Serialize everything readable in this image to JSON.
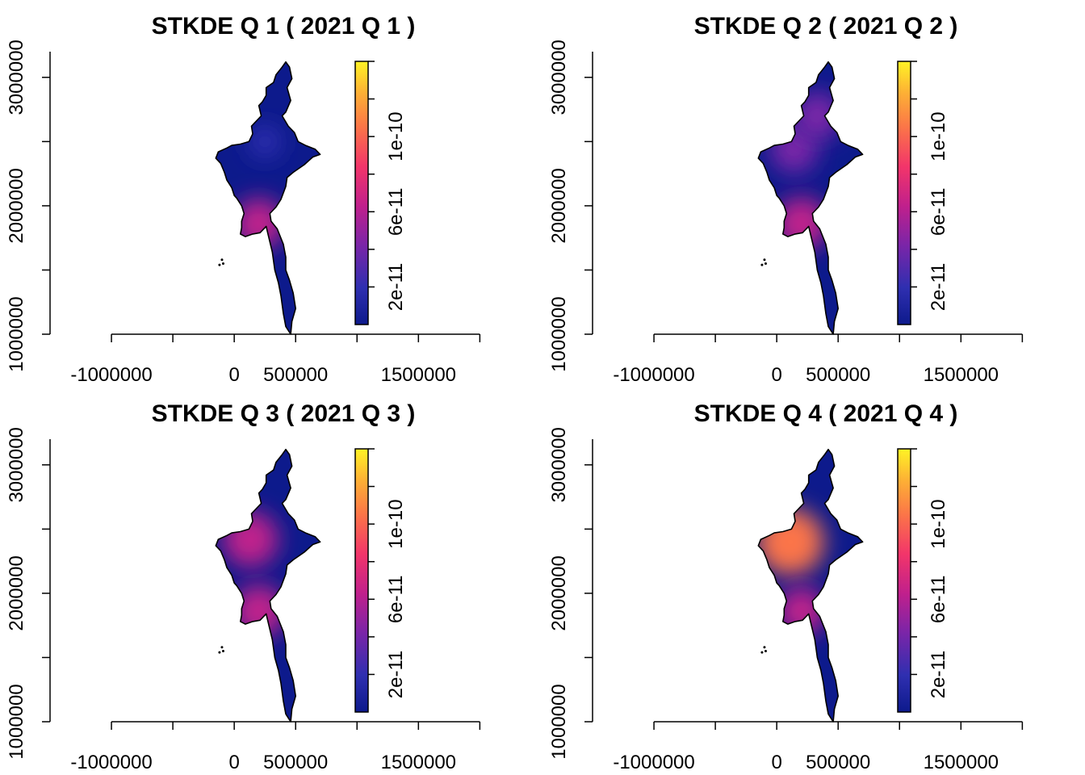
{
  "chart_data": [
    {
      "type": "heatmap",
      "title": "STKDE Q 1 ( 2021 Q 1 )",
      "xlabel": "",
      "ylabel": "",
      "xlim": [
        -1500000,
        2300000
      ],
      "ylim": [
        1000000,
        3200000
      ],
      "x_ticks": [
        -1000000,
        -500000,
        0,
        500000,
        1000000,
        1500000,
        2000000
      ],
      "x_tick_labels": [
        "-1000000",
        "",
        "0",
        "500000",
        "",
        "1500000",
        ""
      ],
      "y_ticks": [
        1000000,
        1500000,
        2000000,
        2500000,
        3000000
      ],
      "y_tick_labels": [
        "1000000",
        "",
        "2000000",
        "",
        "3000000"
      ],
      "colorbar": {
        "min": 0,
        "max": 1.4e-10,
        "ticks": [
          2e-11,
          4e-11,
          6e-11,
          8e-11,
          1e-10,
          1.2e-10,
          1.4e-10
        ],
        "tick_labels": [
          "2e-11",
          "",
          "6e-11",
          "",
          "1e-10",
          "",
          ""
        ]
      },
      "hotspots": [
        {
          "x": 200000,
          "y": 1860000,
          "density": 5.5e-11
        },
        {
          "x": 250000,
          "y": 2500000,
          "density": 1.6e-11
        }
      ]
    },
    {
      "type": "heatmap",
      "title": "STKDE Q 2 ( 2021 Q 2 )",
      "xlabel": "",
      "ylabel": "",
      "xlim": [
        -1500000,
        2300000
      ],
      "ylim": [
        1000000,
        3200000
      ],
      "x_ticks": [
        -1000000,
        -500000,
        0,
        500000,
        1000000,
        1500000,
        2000000
      ],
      "x_tick_labels": [
        "-1000000",
        "",
        "0",
        "500000",
        "",
        "1500000",
        ""
      ],
      "y_ticks": [
        1000000,
        1500000,
        2000000,
        2500000,
        3000000
      ],
      "y_tick_labels": [
        "1000000",
        "",
        "2000000",
        "",
        "3000000"
      ],
      "colorbar": {
        "min": 0,
        "max": 1.4e-10,
        "ticks": [
          2e-11,
          4e-11,
          6e-11,
          8e-11,
          1e-10,
          1.2e-10,
          1.4e-10
        ],
        "tick_labels": [
          "2e-11",
          "",
          "6e-11",
          "",
          "1e-10",
          "",
          ""
        ]
      },
      "hotspots": [
        {
          "x": 200000,
          "y": 1860000,
          "density": 6e-11
        },
        {
          "x": 140000,
          "y": 2440000,
          "density": 4.8e-11
        },
        {
          "x": 330000,
          "y": 2700000,
          "density": 4.8e-11
        }
      ]
    },
    {
      "type": "heatmap",
      "title": "STKDE Q 3 ( 2021 Q 3 )",
      "xlabel": "",
      "ylabel": "",
      "xlim": [
        -1500000,
        2300000
      ],
      "ylim": [
        1000000,
        3200000
      ],
      "x_ticks": [
        -1000000,
        -500000,
        0,
        500000,
        1000000,
        1500000,
        2000000
      ],
      "x_tick_labels": [
        "-1000000",
        "",
        "0",
        "500000",
        "",
        "1500000",
        ""
      ],
      "y_ticks": [
        1000000,
        1500000,
        2000000,
        2500000,
        3000000
      ],
      "y_tick_labels": [
        "1000000",
        "",
        "2000000",
        "",
        "3000000"
      ],
      "colorbar": {
        "min": 0,
        "max": 1.4e-10,
        "ticks": [
          2e-11,
          4e-11,
          6e-11,
          8e-11,
          1e-10,
          1.2e-10,
          1.4e-10
        ],
        "tick_labels": [
          "2e-11",
          "",
          "6e-11",
          "",
          "1e-10",
          "",
          ""
        ]
      },
      "hotspots": [
        {
          "x": 130000,
          "y": 2420000,
          "density": 6.5e-11
        },
        {
          "x": 200000,
          "y": 1860000,
          "density": 6e-11
        }
      ]
    },
    {
      "type": "heatmap",
      "title": "STKDE Q 4 ( 2021 Q 4 )",
      "xlabel": "",
      "ylabel": "",
      "xlim": [
        -1500000,
        2300000
      ],
      "ylim": [
        1000000,
        3200000
      ],
      "x_ticks": [
        -1000000,
        -500000,
        0,
        500000,
        1000000,
        1500000,
        2000000
      ],
      "x_tick_labels": [
        "-1000000",
        "",
        "0",
        "500000",
        "",
        "1500000",
        ""
      ],
      "y_ticks": [
        1000000,
        1500000,
        2000000,
        2500000,
        3000000
      ],
      "y_tick_labels": [
        "1000000",
        "",
        "2000000",
        "",
        "3000000"
      ],
      "colorbar": {
        "min": 0,
        "max": 1.4e-10,
        "ticks": [
          2e-11,
          4e-11,
          6e-11,
          8e-11,
          1e-10,
          1.2e-10,
          1.4e-10
        ],
        "tick_labels": [
          "2e-11",
          "",
          "6e-11",
          "",
          "1e-10",
          "",
          ""
        ]
      },
      "hotspots": [
        {
          "x": 110000,
          "y": 2400000,
          "density": 9e-11
        },
        {
          "x": 200000,
          "y": 1860000,
          "density": 5e-11
        }
      ]
    }
  ],
  "colors": {
    "background": "#ffffff",
    "axis": "#000000",
    "outline": "#000000",
    "palette": [
      "#0d1a8c",
      "#2f2fb0",
      "#7a25a8",
      "#c0208c",
      "#f2356a",
      "#fb7548",
      "#fdb035",
      "#fff325"
    ]
  }
}
